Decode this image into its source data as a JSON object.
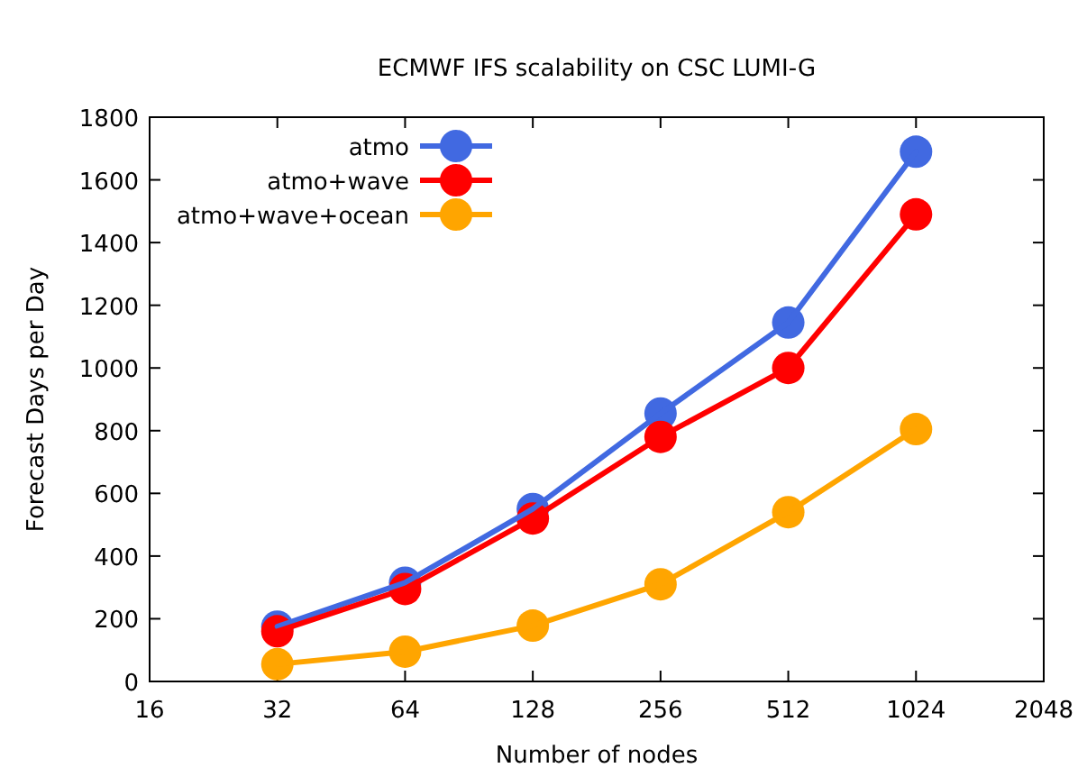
{
  "chart_data": {
    "type": "line",
    "title": "ECMWF IFS scalability on CSC LUMI-G",
    "xlabel": "Number of nodes",
    "ylabel": "Forecast Days per Day",
    "x": [
      32,
      64,
      128,
      256,
      512,
      1024
    ],
    "log": "x",
    "xlim": [
      16,
      2048
    ],
    "xticks": [
      16,
      32,
      64,
      128,
      256,
      512,
      1024,
      2048
    ],
    "ylim": [
      0,
      1800
    ],
    "yticks": [
      0,
      200,
      400,
      600,
      800,
      1000,
      1200,
      1400,
      1600,
      1800
    ],
    "grid": false,
    "legend": "top left",
    "marker": "circle",
    "line_style": "solid",
    "series": [
      {
        "name": "atmo",
        "color": "#4169e1",
        "values": [
          175,
          315,
          550,
          855,
          1145,
          1690
        ]
      },
      {
        "name": "atmo+wave",
        "color": "#ff0000",
        "values": [
          160,
          295,
          520,
          780,
          1000,
          1490
        ]
      },
      {
        "name": "atmo+wave+ocean",
        "color": "#ffa500",
        "values": [
          55,
          95,
          178,
          310,
          540,
          805
        ]
      }
    ]
  }
}
